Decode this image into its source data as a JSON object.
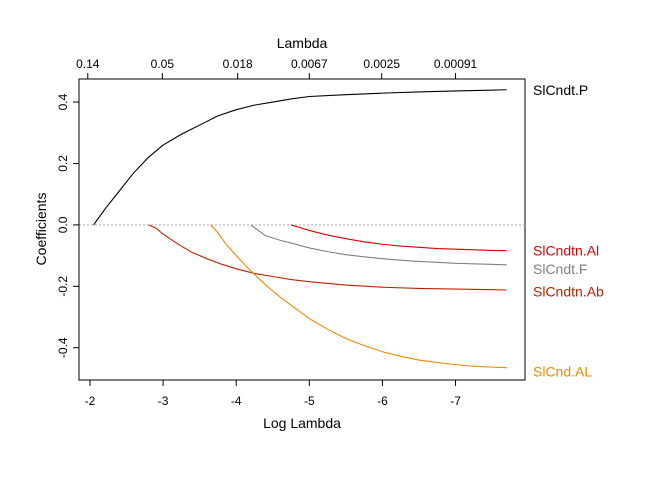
{
  "chart_data": {
    "type": "line",
    "title": "",
    "xlabel": "Log Lambda",
    "ylabel": "Coefficients",
    "top_axis_label": "Lambda",
    "xlim": [
      -1.85,
      -7.95
    ],
    "ylim": [
      -0.505,
      0.475
    ],
    "x_ticks": [
      -2,
      -3,
      -4,
      -5,
      -6,
      -7
    ],
    "x_tick_labels": [
      "-2",
      "-3",
      "-4",
      "-5",
      "-6",
      "-7"
    ],
    "y_ticks": [
      0.4,
      0.2,
      0.0,
      -0.2,
      -0.4
    ],
    "y_tick_labels": [
      "0.4",
      "0.2",
      "0.0",
      "-0.2",
      "-0.4"
    ],
    "top_ticks": [
      -1.97,
      -2.99,
      -4.02,
      -5.0,
      -5.99,
      -7.0
    ],
    "top_tick_labels": [
      "0.14",
      "0.05",
      "0.018",
      "0.0067",
      "0.0025",
      "0.00091"
    ],
    "zero_line": true,
    "grid": false,
    "legend": "right-edge labels",
    "series": [
      {
        "name": "SlCndt.P",
        "color": "#000000",
        "points": [
          [
            -2.05,
            0.0
          ],
          [
            -2.2,
            0.05
          ],
          [
            -2.4,
            0.11
          ],
          [
            -2.6,
            0.17
          ],
          [
            -2.8,
            0.22
          ],
          [
            -3.0,
            0.26
          ],
          [
            -3.25,
            0.295
          ],
          [
            -3.5,
            0.325
          ],
          [
            -3.75,
            0.355
          ],
          [
            -4.0,
            0.375
          ],
          [
            -4.25,
            0.39
          ],
          [
            -4.5,
            0.4
          ],
          [
            -4.75,
            0.41
          ],
          [
            -5.0,
            0.418
          ],
          [
            -5.5,
            0.424
          ],
          [
            -6.0,
            0.429
          ],
          [
            -6.5,
            0.433
          ],
          [
            -7.0,
            0.436
          ],
          [
            -7.4,
            0.438
          ],
          [
            -7.7,
            0.44
          ]
        ]
      },
      {
        "name": "SlCndtn.Al",
        "color": "#dd0000",
        "points": [
          [
            -4.75,
            0.0
          ],
          [
            -5.0,
            -0.018
          ],
          [
            -5.25,
            -0.033
          ],
          [
            -5.5,
            -0.045
          ],
          [
            -5.75,
            -0.055
          ],
          [
            -6.0,
            -0.063
          ],
          [
            -6.25,
            -0.069
          ],
          [
            -6.5,
            -0.073
          ],
          [
            -6.75,
            -0.077
          ],
          [
            -7.0,
            -0.079
          ],
          [
            -7.25,
            -0.081
          ],
          [
            -7.5,
            -0.083
          ],
          [
            -7.7,
            -0.084
          ]
        ]
      },
      {
        "name": "SlCndt.F",
        "color": "#808080",
        "points": [
          [
            -4.2,
            0.0
          ],
          [
            -4.4,
            -0.035
          ],
          [
            -4.6,
            -0.05
          ],
          [
            -4.8,
            -0.062
          ],
          [
            -5.0,
            -0.075
          ],
          [
            -5.25,
            -0.087
          ],
          [
            -5.5,
            -0.097
          ],
          [
            -5.75,
            -0.104
          ],
          [
            -6.0,
            -0.11
          ],
          [
            -6.25,
            -0.115
          ],
          [
            -6.5,
            -0.119
          ],
          [
            -6.75,
            -0.122
          ],
          [
            -7.0,
            -0.125
          ],
          [
            -7.3,
            -0.127
          ],
          [
            -7.7,
            -0.13
          ]
        ]
      },
      {
        "name": "SlCndtn.Ab",
        "color": "#bb2200",
        "points": [
          [
            -2.8,
            0.0
          ],
          [
            -2.9,
            -0.01
          ],
          [
            -3.0,
            -0.03
          ],
          [
            -3.2,
            -0.062
          ],
          [
            -3.4,
            -0.09
          ],
          [
            -3.6,
            -0.11
          ],
          [
            -3.8,
            -0.128
          ],
          [
            -4.0,
            -0.143
          ],
          [
            -4.25,
            -0.158
          ],
          [
            -4.5,
            -0.168
          ],
          [
            -4.75,
            -0.178
          ],
          [
            -5.0,
            -0.185
          ],
          [
            -5.5,
            -0.196
          ],
          [
            -6.0,
            -0.203
          ],
          [
            -6.5,
            -0.207
          ],
          [
            -7.0,
            -0.209
          ],
          [
            -7.5,
            -0.211
          ],
          [
            -7.7,
            -0.212
          ]
        ]
      },
      {
        "name": "SlCnd.AL",
        "color": "#ee8800",
        "points": [
          [
            -3.65,
            0.0
          ],
          [
            -3.75,
            -0.025
          ],
          [
            -3.85,
            -0.06
          ],
          [
            -4.0,
            -0.1
          ],
          [
            -4.2,
            -0.15
          ],
          [
            -4.4,
            -0.195
          ],
          [
            -4.6,
            -0.235
          ],
          [
            -4.8,
            -0.27
          ],
          [
            -5.0,
            -0.305
          ],
          [
            -5.25,
            -0.34
          ],
          [
            -5.5,
            -0.37
          ],
          [
            -5.75,
            -0.393
          ],
          [
            -6.0,
            -0.413
          ],
          [
            -6.25,
            -0.428
          ],
          [
            -6.5,
            -0.44
          ],
          [
            -6.75,
            -0.448
          ],
          [
            -7.0,
            -0.455
          ],
          [
            -7.3,
            -0.461
          ],
          [
            -7.7,
            -0.465
          ]
        ]
      }
    ],
    "right_labels": [
      {
        "text": "SlCndt.P",
        "y": 0.44,
        "color": "#000000"
      },
      {
        "text": "SlCndtn.Al",
        "y": -0.084,
        "color": "#dd0000"
      },
      {
        "text": "SlCndt.F",
        "y": -0.143,
        "color": "#808080"
      },
      {
        "text": "SlCndtn.Ab",
        "y": -0.217,
        "color": "#bb2200"
      },
      {
        "text": "SlCnd.AL",
        "y": -0.478,
        "color": "#ee8800"
      }
    ]
  }
}
